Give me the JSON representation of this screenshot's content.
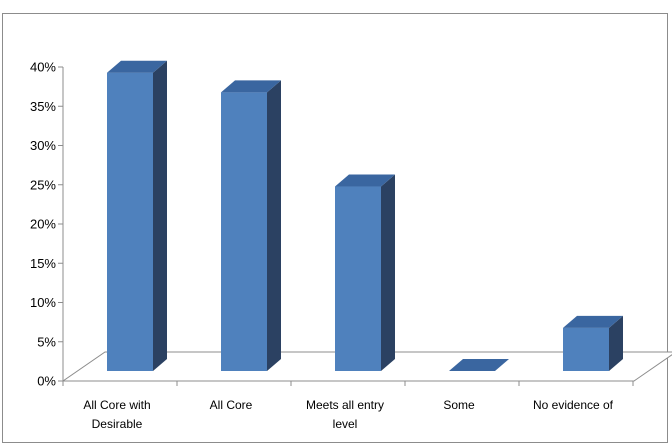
{
  "chart_data": {
    "type": "bar",
    "style": "3d-column",
    "categories": [
      [
        "All Core with",
        "Desirable"
      ],
      [
        "All Core"
      ],
      [
        "Meets all entry",
        "level"
      ],
      [
        "Some"
      ],
      [
        "No evidence of"
      ]
    ],
    "values": [
      0.38,
      0.355,
      0.235,
      0.0,
      0.055
    ],
    "ylim": [
      0,
      0.4
    ],
    "yticks": [
      "0%",
      "5%",
      "10%",
      "15%",
      "20%",
      "25%",
      "30%",
      "35%",
      "40%"
    ],
    "title": "",
    "xlabel": "",
    "ylabel": "",
    "grid": false,
    "legend": "none",
    "colors": {
      "front": "#4f81bd",
      "top": "#3a66a0",
      "side": "#2b4162",
      "floor": "#ffffff",
      "axis": "#8c8c8c"
    }
  }
}
